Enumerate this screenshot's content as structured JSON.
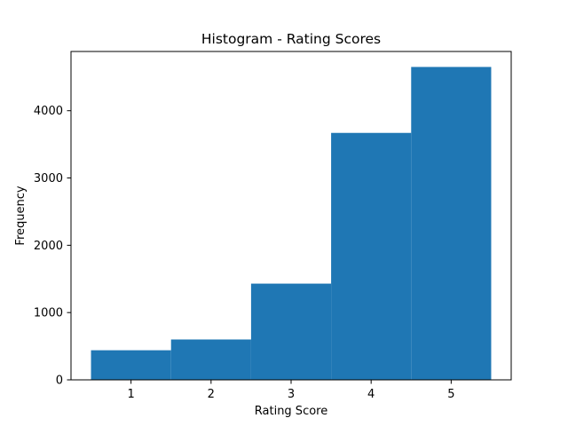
{
  "chart_data": {
    "type": "bar",
    "title": "Histogram - Rating Scores",
    "xlabel": "Rating Score",
    "ylabel": "Frequency",
    "categories": [
      "1",
      "2",
      "3",
      "4",
      "5"
    ],
    "x": [
      1,
      2,
      3,
      4,
      5
    ],
    "values": [
      440,
      600,
      1430,
      3670,
      4650
    ],
    "bar_width": 1,
    "xlim": [
      0.25,
      5.75
    ],
    "ylim": [
      0,
      4880
    ],
    "yticks": [
      0,
      1000,
      2000,
      3000,
      4000
    ],
    "ytick_labels": [
      "0",
      "1000",
      "2000",
      "3000",
      "4000"
    ],
    "xticks": [
      1,
      2,
      3,
      4,
      5
    ],
    "xtick_labels": [
      "1",
      "2",
      "3",
      "4",
      "5"
    ],
    "grid": false,
    "legend": "none",
    "bar_color": "#1f77b4"
  }
}
